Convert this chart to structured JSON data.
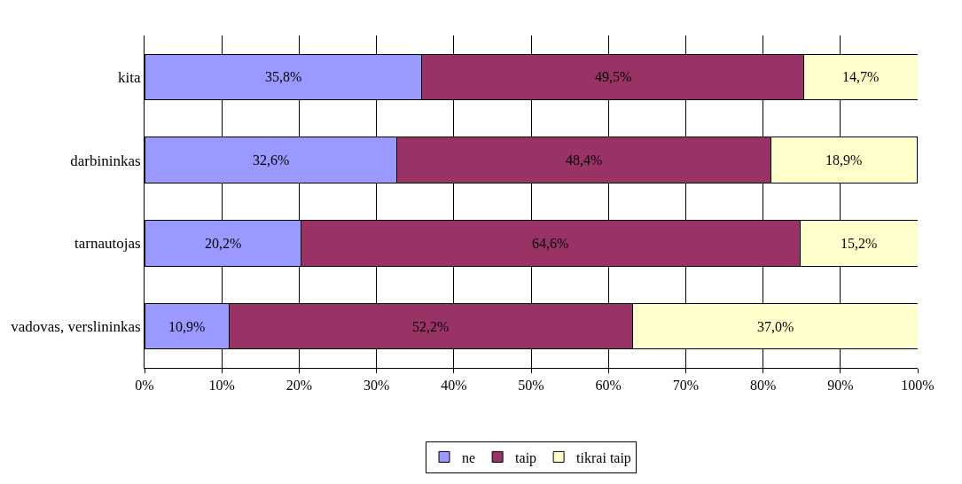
{
  "chart_data": {
    "type": "bar",
    "orientation": "horizontal",
    "stacked": true,
    "categories": [
      "kita",
      "darbininkas",
      "tarnautojas",
      "vadovas, verslininkas"
    ],
    "series": [
      {
        "name": "ne",
        "color": "#9999ff",
        "values": [
          35.8,
          32.6,
          20.2,
          10.9
        ],
        "value_labels": [
          "35,8%",
          "32,6%",
          "20,2%",
          "10,9%"
        ]
      },
      {
        "name": "taip",
        "color": "#993366",
        "values": [
          49.5,
          48.4,
          64.6,
          52.2
        ],
        "value_labels": [
          "49,5%",
          "48,4%",
          "64,6%",
          "52,2%"
        ]
      },
      {
        "name": "tikrai taip",
        "color": "#ffffcc",
        "values": [
          14.7,
          18.9,
          15.2,
          37.0
        ],
        "value_labels": [
          "14,7%",
          "18,9%",
          "15,2%",
          "37,0%"
        ]
      }
    ],
    "xlim": [
      0,
      100
    ],
    "xticks": [
      {
        "value": 0,
        "label": "0%"
      },
      {
        "value": 10,
        "label": "10%"
      },
      {
        "value": 20,
        "label": "20%"
      },
      {
        "value": 30,
        "label": "30%"
      },
      {
        "value": 40,
        "label": "40%"
      },
      {
        "value": 50,
        "label": "50%"
      },
      {
        "value": 60,
        "label": "60%"
      },
      {
        "value": 70,
        "label": "70%"
      },
      {
        "value": 80,
        "label": "80%"
      },
      {
        "value": 90,
        "label": "90%"
      },
      {
        "value": 100,
        "label": "100%"
      }
    ],
    "grid": "x",
    "legend": "bottom"
  }
}
